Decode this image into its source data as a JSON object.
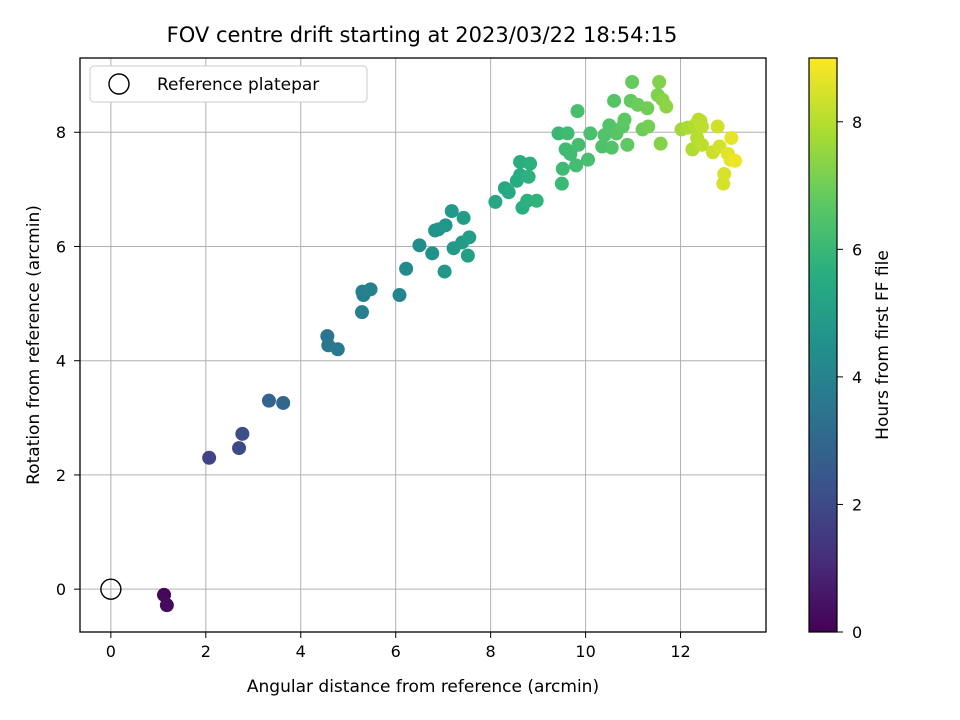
{
  "chart_data": {
    "type": "scatter",
    "title": "FOV centre drift starting at 2023/03/22 18:54:15",
    "xlabel": "Angular distance from reference (arcmin)",
    "ylabel": "Rotation from reference (arcmin)",
    "xlim": [
      -0.65,
      13.8
    ],
    "ylim": [
      -0.75,
      9.3
    ],
    "xticks": [
      "0",
      "2",
      "4",
      "6",
      "8",
      "10",
      "12"
    ],
    "yticks": [
      "0",
      "2",
      "4",
      "6",
      "8"
    ],
    "grid": true,
    "legend": {
      "position": "top-left",
      "entries": [
        "Reference platepar"
      ]
    },
    "colorbar": {
      "label": "Hours from first FF file",
      "range": [
        0,
        9
      ],
      "ticks": [
        "0",
        "2",
        "4",
        "6",
        "8"
      ],
      "colormap": "viridis"
    },
    "reference_point": {
      "x": 0,
      "y": 0
    },
    "points": [
      {
        "x": 1.12,
        "y": -0.1,
        "h": 0.15
      },
      {
        "x": 1.18,
        "y": -0.28,
        "h": 0.25
      },
      {
        "x": 2.07,
        "y": 2.3,
        "h": 1.8
      },
      {
        "x": 2.7,
        "y": 2.47,
        "h": 2.0
      },
      {
        "x": 2.77,
        "y": 2.72,
        "h": 2.1
      },
      {
        "x": 3.33,
        "y": 3.3,
        "h": 2.9
      },
      {
        "x": 3.63,
        "y": 3.26,
        "h": 3.0
      },
      {
        "x": 4.56,
        "y": 4.43,
        "h": 3.5
      },
      {
        "x": 4.58,
        "y": 4.27,
        "h": 3.55
      },
      {
        "x": 4.78,
        "y": 4.2,
        "h": 3.6
      },
      {
        "x": 5.3,
        "y": 5.21,
        "h": 3.8
      },
      {
        "x": 5.32,
        "y": 5.15,
        "h": 3.85
      },
      {
        "x": 5.29,
        "y": 4.85,
        "h": 3.9
      },
      {
        "x": 5.47,
        "y": 5.25,
        "h": 3.95
      },
      {
        "x": 6.08,
        "y": 5.15,
        "h": 4.05
      },
      {
        "x": 6.22,
        "y": 5.61,
        "h": 4.2
      },
      {
        "x": 6.5,
        "y": 6.02,
        "h": 4.4
      },
      {
        "x": 6.77,
        "y": 5.88,
        "h": 4.5
      },
      {
        "x": 6.83,
        "y": 6.28,
        "h": 4.6
      },
      {
        "x": 6.9,
        "y": 6.3,
        "h": 4.65
      },
      {
        "x": 7.05,
        "y": 6.37,
        "h": 4.7
      },
      {
        "x": 7.03,
        "y": 5.56,
        "h": 4.75
      },
      {
        "x": 7.18,
        "y": 6.62,
        "h": 4.8
      },
      {
        "x": 7.22,
        "y": 5.97,
        "h": 4.85
      },
      {
        "x": 7.4,
        "y": 6.07,
        "h": 4.9
      },
      {
        "x": 7.43,
        "y": 6.5,
        "h": 4.95
      },
      {
        "x": 7.55,
        "y": 6.16,
        "h": 5.0
      },
      {
        "x": 7.52,
        "y": 5.84,
        "h": 5.05
      },
      {
        "x": 8.1,
        "y": 6.78,
        "h": 5.3
      },
      {
        "x": 8.3,
        "y": 7.02,
        "h": 5.4
      },
      {
        "x": 8.38,
        "y": 6.95,
        "h": 5.45
      },
      {
        "x": 8.55,
        "y": 7.15,
        "h": 5.5
      },
      {
        "x": 8.62,
        "y": 7.25,
        "h": 5.55
      },
      {
        "x": 8.62,
        "y": 7.48,
        "h": 5.6
      },
      {
        "x": 8.67,
        "y": 6.68,
        "h": 5.65
      },
      {
        "x": 8.77,
        "y": 6.8,
        "h": 5.7
      },
      {
        "x": 8.83,
        "y": 7.45,
        "h": 5.7
      },
      {
        "x": 8.8,
        "y": 7.22,
        "h": 5.75
      },
      {
        "x": 8.97,
        "y": 6.8,
        "h": 5.8
      },
      {
        "x": 9.43,
        "y": 7.98,
        "h": 6.0
      },
      {
        "x": 9.5,
        "y": 7.1,
        "h": 6.05
      },
      {
        "x": 9.52,
        "y": 7.36,
        "h": 6.1
      },
      {
        "x": 9.58,
        "y": 7.7,
        "h": 6.1
      },
      {
        "x": 9.62,
        "y": 7.98,
        "h": 6.15
      },
      {
        "x": 9.68,
        "y": 7.62,
        "h": 6.15
      },
      {
        "x": 9.8,
        "y": 7.42,
        "h": 6.2
      },
      {
        "x": 9.85,
        "y": 7.78,
        "h": 6.25
      },
      {
        "x": 9.83,
        "y": 8.37,
        "h": 6.3
      },
      {
        "x": 10.05,
        "y": 7.52,
        "h": 6.3
      },
      {
        "x": 10.1,
        "y": 7.98,
        "h": 6.35
      },
      {
        "x": 10.35,
        "y": 7.75,
        "h": 6.4
      },
      {
        "x": 10.4,
        "y": 7.95,
        "h": 6.45
      },
      {
        "x": 10.5,
        "y": 8.12,
        "h": 6.5
      },
      {
        "x": 10.55,
        "y": 7.73,
        "h": 6.5
      },
      {
        "x": 10.6,
        "y": 8.55,
        "h": 6.55
      },
      {
        "x": 10.65,
        "y": 7.98,
        "h": 6.6
      },
      {
        "x": 10.78,
        "y": 8.1,
        "h": 6.65
      },
      {
        "x": 10.82,
        "y": 8.22,
        "h": 6.7
      },
      {
        "x": 10.88,
        "y": 7.78,
        "h": 6.75
      },
      {
        "x": 10.95,
        "y": 8.55,
        "h": 6.8
      },
      {
        "x": 10.98,
        "y": 8.88,
        "h": 6.85
      },
      {
        "x": 11.1,
        "y": 8.48,
        "h": 6.9
      },
      {
        "x": 11.2,
        "y": 8.05,
        "h": 6.95
      },
      {
        "x": 11.3,
        "y": 8.42,
        "h": 7.0
      },
      {
        "x": 11.32,
        "y": 8.1,
        "h": 7.05
      },
      {
        "x": 11.52,
        "y": 8.65,
        "h": 7.2
      },
      {
        "x": 11.55,
        "y": 8.88,
        "h": 7.25
      },
      {
        "x": 11.58,
        "y": 7.8,
        "h": 7.3
      },
      {
        "x": 11.62,
        "y": 8.57,
        "h": 7.35
      },
      {
        "x": 11.7,
        "y": 8.45,
        "h": 7.4
      },
      {
        "x": 12.02,
        "y": 8.05,
        "h": 7.7
      },
      {
        "x": 12.15,
        "y": 8.08,
        "h": 7.8
      },
      {
        "x": 12.25,
        "y": 7.7,
        "h": 7.9
      },
      {
        "x": 12.3,
        "y": 8.12,
        "h": 7.95
      },
      {
        "x": 12.35,
        "y": 7.9,
        "h": 8.0
      },
      {
        "x": 12.38,
        "y": 8.22,
        "h": 8.05
      },
      {
        "x": 12.42,
        "y": 8.2,
        "h": 8.05
      },
      {
        "x": 12.45,
        "y": 7.78,
        "h": 8.1
      },
      {
        "x": 12.45,
        "y": 8.1,
        "h": 8.1
      },
      {
        "x": 12.68,
        "y": 7.65,
        "h": 8.3
      },
      {
        "x": 12.78,
        "y": 8.1,
        "h": 8.35
      },
      {
        "x": 12.82,
        "y": 7.75,
        "h": 8.4
      },
      {
        "x": 12.9,
        "y": 7.1,
        "h": 8.45
      },
      {
        "x": 12.92,
        "y": 7.27,
        "h": 8.5
      },
      {
        "x": 13.0,
        "y": 7.62,
        "h": 8.6
      },
      {
        "x": 13.05,
        "y": 7.52,
        "h": 8.65
      },
      {
        "x": 13.07,
        "y": 7.9,
        "h": 8.7
      },
      {
        "x": 13.15,
        "y": 7.5,
        "h": 8.8
      }
    ]
  }
}
